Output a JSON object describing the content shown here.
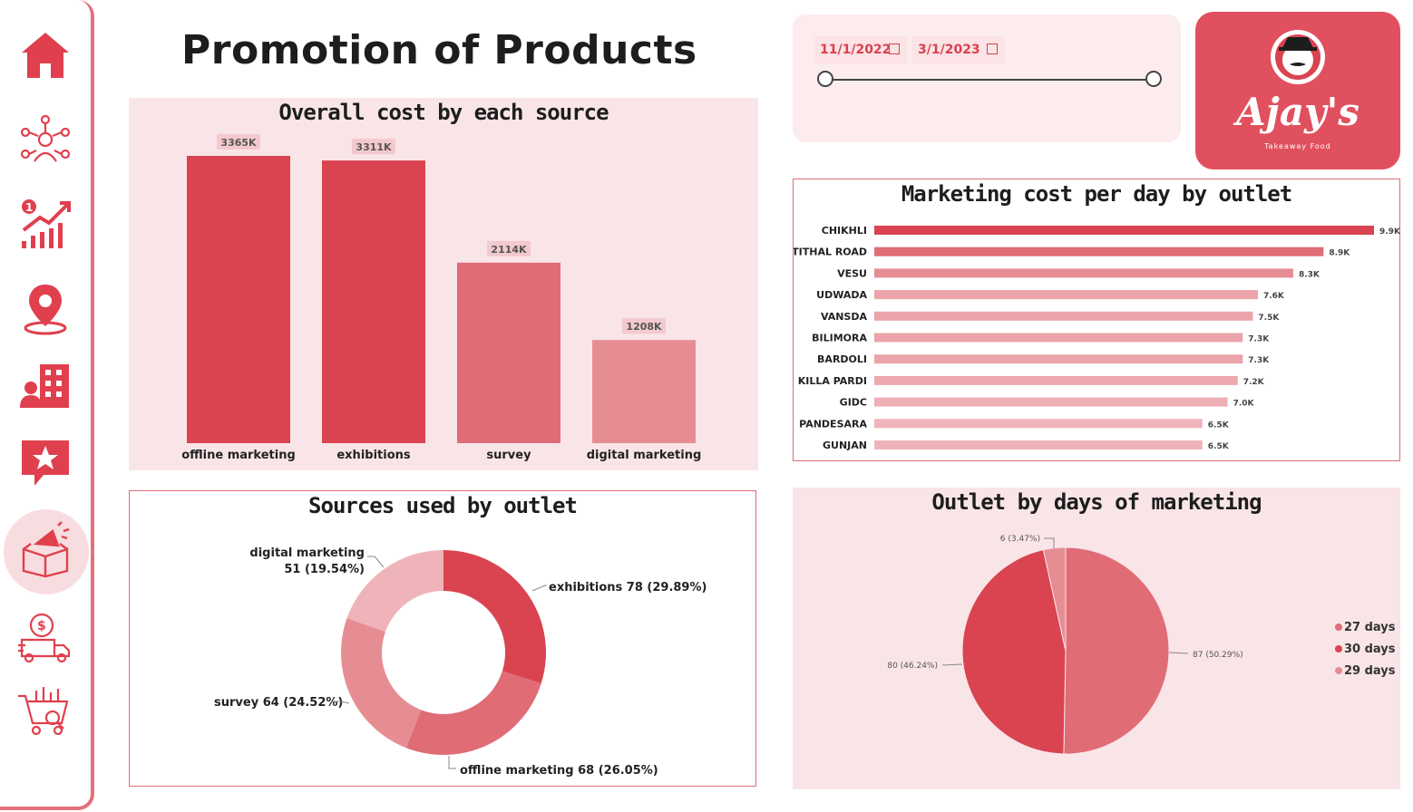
{
  "page": {
    "title": "Promotion of Products"
  },
  "nav": {
    "items": [
      {
        "icon": "home-icon"
      },
      {
        "icon": "customer-network-icon"
      },
      {
        "icon": "growth-chart-icon"
      },
      {
        "icon": "location-pin-icon"
      },
      {
        "icon": "building-user-icon"
      },
      {
        "icon": "star-review-icon"
      },
      {
        "icon": "promotion-box-icon",
        "active": true
      },
      {
        "icon": "delivery-cost-icon"
      },
      {
        "icon": "shopping-cart-icon"
      }
    ]
  },
  "date_filter": {
    "start": "11/1/2022",
    "end": "3/1/2023"
  },
  "logo": {
    "text": "Ajay's",
    "subtitle": "Takeaway Food"
  },
  "colors": {
    "accent": "#d94450",
    "mid": "#e06c76",
    "light": "#e68d94",
    "lighter": "#efb4ba",
    "panel_bg": "#f9e5e7"
  },
  "charts": {
    "cost_by_source": {
      "title": "Overall cost by each source",
      "data_labels": [
        "3365K",
        "3311K",
        "2114K",
        "1208K"
      ]
    },
    "cost_per_day": {
      "title": "Marketing cost per day by outlet",
      "data_labels": [
        "9.9K",
        "8.9K",
        "8.3K",
        "7.6K",
        "7.5K",
        "7.3K",
        "7.3K",
        "7.2K",
        "7.0K",
        "6.5K",
        "6.5K"
      ]
    },
    "sources_by_outlet": {
      "title": "Sources used by outlet",
      "labels": {
        "exhibitions": "exhibitions 78 (29.89%)",
        "offline": "offline marketing 68 (26.05%)",
        "survey": "survey 64 (24.52%)",
        "digital_1": "digital marketing",
        "digital_2": "51 (19.54%)"
      }
    },
    "days_of_marketing": {
      "title": "Outlet by days of marketing",
      "labels": {
        "a": "87 (50.29%)",
        "b": "80 (46.24%)",
        "c": "6 (3.47%)"
      },
      "legend": [
        "27 days",
        "30 days",
        "29 days"
      ]
    }
  },
  "chart_data": [
    {
      "type": "bar",
      "title": "Overall cost by each source",
      "categories": [
        "offline marketing",
        "exhibitions",
        "survey",
        "digital marketing"
      ],
      "values": [
        3365,
        3311,
        2114,
        1208
      ],
      "ylim": [
        0,
        3365
      ]
    },
    {
      "type": "bar",
      "title": "Marketing cost per day by outlet",
      "orientation": "horizontal",
      "categories": [
        "CHIKHLI",
        "TITHAL ROAD",
        "VESU",
        "UDWADA",
        "VANSDA",
        "BILIMORA",
        "BARDOLI",
        "KILLA PARDI",
        "GIDC",
        "PANDESARA",
        "GUNJAN"
      ],
      "values": [
        9.9,
        8.9,
        8.3,
        7.6,
        7.5,
        7.3,
        7.3,
        7.2,
        7.0,
        6.5,
        6.5
      ],
      "xlim": [
        0,
        9.9
      ]
    },
    {
      "type": "pie",
      "title": "Sources used by outlet",
      "donut": true,
      "categories": [
        "exhibitions",
        "offline marketing",
        "survey",
        "digital marketing"
      ],
      "values": [
        78,
        68,
        64,
        51
      ],
      "percents": [
        29.89,
        26.05,
        24.52,
        19.54
      ]
    },
    {
      "type": "pie",
      "title": "Outlet by days of marketing",
      "categories": [
        "27 days",
        "30 days",
        "29 days"
      ],
      "values": [
        87,
        80,
        6
      ],
      "percents": [
        50.29,
        46.24,
        3.47
      ],
      "legend": "right"
    }
  ]
}
